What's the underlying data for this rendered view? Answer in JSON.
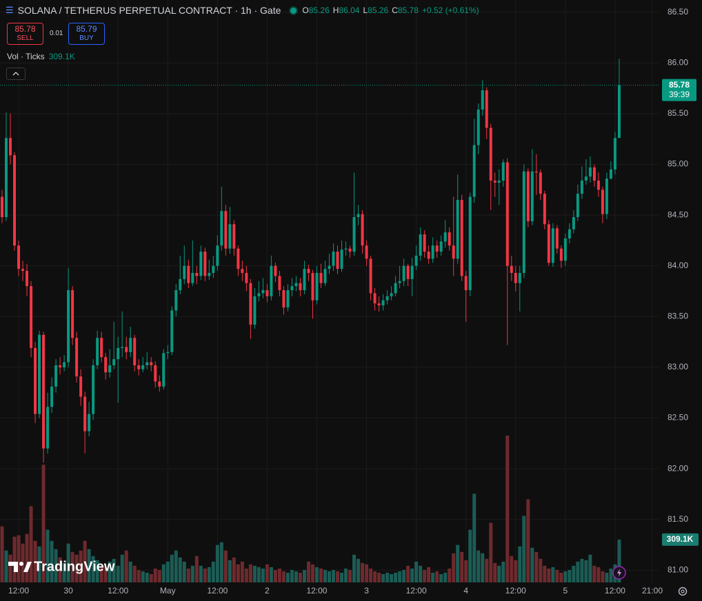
{
  "symbol_title": "SOLANA / TETHERUS PERPETUAL CONTRACT · 1h · Gate",
  "header": {
    "o_label": "O",
    "h_label": "H",
    "l_label": "L",
    "c_label": "C",
    "change": "+0.52 (+0.61%)"
  },
  "trade": {
    "sell_price": 85.78,
    "sell": "SELL",
    "spread": 0.01,
    "buy_price": 85.79,
    "buy": "BUY"
  },
  "countdown": "39:39",
  "brand": "TradingView",
  "chart_data": {
    "type": "candlestick",
    "categories": [
      null,
      null,
      null,
      null,
      "12:00",
      null,
      null,
      null,
      null,
      null,
      null,
      null,
      null,
      null,
      null,
      null,
      "30",
      null,
      null,
      null,
      null,
      null,
      null,
      null,
      null,
      null,
      null,
      null,
      "12:00",
      null,
      null,
      null,
      null,
      null,
      null,
      null,
      null,
      null,
      null,
      null,
      "May",
      null,
      null,
      null,
      null,
      null,
      null,
      null,
      null,
      null,
      null,
      null,
      "12:00",
      null,
      null,
      null,
      null,
      null,
      null,
      null,
      null,
      null,
      null,
      null,
      "2",
      null,
      null,
      null,
      null,
      null,
      null,
      null,
      null,
      null,
      null,
      null,
      "12:00",
      null,
      null,
      null,
      null,
      null,
      null,
      null,
      null,
      null,
      null,
      null,
      "3",
      null,
      null,
      null,
      null,
      null,
      null,
      null,
      null,
      null,
      null,
      null,
      "12:00",
      null,
      null,
      null,
      null,
      null,
      null,
      null,
      null,
      null,
      null,
      null,
      "4",
      null,
      null,
      null,
      null,
      null,
      null,
      null,
      null,
      null,
      null,
      null,
      "12:00",
      null,
      null,
      null,
      null,
      null,
      null,
      null,
      null,
      null,
      null,
      null,
      "5",
      null,
      null,
      null,
      null,
      null,
      null,
      null,
      null,
      null,
      null,
      null,
      "12:00",
      null,
      null,
      null,
      null,
      null,
      null,
      null,
      null,
      "21:00",
      null
    ],
    "open": [
      84.68,
      84.48,
      85.26,
      85.09,
      84.2,
      83.97,
      83.95,
      83.8,
      83.19,
      82.54,
      83.32,
      82.2,
      82.61,
      82.81,
      83.02,
      83.0,
      83.05,
      83.76,
      83.29,
      82.91,
      82.71,
      82.37,
      82.54,
      83.02,
      83.29,
      83.1,
      82.95,
      83.02,
      83.08,
      83.19,
      83.2,
      83.15,
      83.29,
      83.02,
      82.98,
      83.02,
      83.05,
      83.02,
      82.86,
      82.81,
      83.14,
      83.15,
      83.56,
      83.76,
      83.87,
      84.0,
      83.83,
      83.93,
      83.9,
      84.14,
      83.9,
      83.93,
      84.0,
      84.2,
      84.54,
      84.17,
      84.41,
      84.17,
      83.97,
      83.93,
      83.83,
      83.42,
      83.7,
      83.73,
      83.76,
      83.7,
      84.0,
      83.9,
      83.76,
      83.59,
      83.76,
      83.8,
      83.83,
      83.76,
      83.97,
      83.93,
      83.66,
      83.93,
      83.83,
      83.97,
      84.0,
      84.14,
      83.97,
      84.16,
      84.17,
      84.14,
      84.48,
      84.51,
      84.2,
      84.07,
      83.73,
      83.63,
      83.61,
      83.66,
      83.7,
      83.73,
      83.83,
      83.85,
      84.0,
      83.87,
      84.0,
      84.1,
      84.31,
      84.14,
      84.07,
      84.2,
      84.14,
      84.24,
      84.33,
      84.2,
      84.07,
      84.65,
      83.9,
      83.76,
      84.68,
      85.19,
      85.54,
      85.73,
      85.36,
      84.84,
      84.82,
      84.84,
      85.02,
      84.0,
      83.93,
      83.83,
      83.93,
      84.93,
      84.44,
      84.93,
      84.92,
      84.71,
      84.41,
      84.03,
      84.37,
      84.17,
      84.05,
      84.27,
      84.36,
      84.48,
      84.71,
      84.84,
      84.88,
      84.97,
      84.84,
      84.75,
      84.51,
      84.86,
      84.95,
      85.26,
      null,
      null,
      null,
      null,
      null,
      null,
      null,
      null,
      null
    ],
    "high": [
      84.75,
      85.51,
      85.5,
      85.12,
      84.25,
      84.05,
      84.02,
      83.85,
      83.25,
      83.36,
      83.35,
      82.75,
      82.9,
      83.08,
      83.1,
      83.12,
      83.98,
      83.8,
      83.35,
      82.98,
      82.76,
      82.66,
      83.08,
      83.36,
      83.35,
      83.14,
      83.18,
      83.45,
      83.3,
      83.55,
      83.3,
      83.4,
      83.32,
      83.08,
      83.1,
      83.15,
      83.1,
      83.06,
      82.92,
      83.18,
      83.22,
      83.6,
      83.82,
      84.1,
      84.2,
      84.06,
      84.25,
      84.0,
      84.2,
      84.18,
      84.06,
      84.1,
      84.3,
      84.78,
      84.6,
      84.58,
      84.45,
      84.2,
      84.05,
      84.0,
      83.87,
      83.78,
      83.85,
      83.88,
      83.82,
      84.1,
      84.03,
      83.95,
      83.8,
      83.82,
      83.88,
      83.9,
      83.88,
      84.05,
      84.01,
      83.96,
      84.0,
      84.02,
      84.05,
      84.12,
      84.22,
      84.2,
      84.25,
      84.24,
      84.2,
      84.92,
      84.6,
      84.55,
      84.25,
      84.1,
      83.78,
      83.7,
      83.72,
      83.76,
      83.8,
      83.9,
      84.0,
      84.07,
      84.02,
      84.08,
      84.2,
      84.38,
      84.35,
      84.2,
      84.28,
      84.25,
      84.3,
      84.45,
      84.38,
      84.68,
      84.9,
      84.7,
      83.95,
      84.72,
      85.45,
      85.6,
      85.83,
      85.76,
      85.4,
      84.92,
      84.95,
      85.05,
      85.06,
      84.1,
      84.0,
      84.0,
      85.0,
      84.96,
      85.15,
      85.1,
      84.95,
      84.74,
      84.45,
      84.42,
      84.4,
      84.2,
      84.32,
      84.42,
      84.55,
      84.8,
      84.98,
      85.05,
      85.08,
      85.0,
      84.92,
      84.78,
      84.92,
      85.03,
      85.32,
      86.04,
      null,
      null,
      null,
      null,
      null,
      null,
      null,
      null,
      null
    ],
    "low": [
      84.42,
      84.44,
      85.0,
      84.15,
      83.9,
      83.85,
      83.7,
      83.1,
      82.45,
      82.5,
      82.06,
      82.15,
      82.55,
      82.75,
      82.93,
      82.96,
      83.0,
      83.22,
      82.85,
      82.62,
      82.15,
      82.32,
      82.48,
      82.98,
      83.05,
      82.88,
      82.9,
      82.98,
      82.65,
      83.1,
      83.08,
      83.1,
      82.96,
      82.92,
      82.95,
      82.98,
      82.96,
      82.8,
      82.76,
      82.78,
      83.08,
      83.12,
      83.5,
      83.72,
      83.82,
      83.78,
      83.8,
      83.82,
      83.86,
      83.85,
      83.86,
      83.88,
      83.95,
      84.15,
      84.1,
      84.12,
      84.1,
      83.9,
      83.85,
      83.75,
      83.28,
      83.38,
      83.65,
      83.68,
      83.64,
      83.66,
      83.84,
      83.7,
      83.52,
      83.55,
      83.7,
      83.75,
      83.7,
      83.72,
      83.85,
      83.48,
      83.62,
      83.78,
      83.8,
      83.92,
      83.95,
      83.92,
      83.94,
      84.1,
      84.08,
      84.1,
      84.4,
      84.12,
      84.0,
      83.66,
      83.56,
      83.55,
      83.56,
      83.62,
      83.66,
      83.7,
      83.78,
      83.8,
      83.8,
      83.7,
      83.96,
      84.05,
      84.08,
      84.02,
      84.03,
      84.08,
      84.1,
      84.18,
      84.15,
      83.9,
      84.02,
      83.85,
      83.45,
      83.7,
      84.62,
      85.1,
      85.48,
      85.25,
      84.55,
      84.68,
      84.6,
      84.78,
      83.22,
      83.85,
      83.75,
      83.55,
      83.88,
      84.38,
      84.4,
      84.7,
      84.65,
      84.36,
      84.0,
      83.99,
      84.12,
      83.98,
      84.0,
      84.22,
      84.32,
      84.44,
      84.66,
      84.8,
      84.82,
      84.78,
      84.68,
      84.42,
      84.46,
      84.85,
      84.9,
      85.26,
      null,
      null,
      null,
      null,
      null,
      null,
      null,
      null,
      null
    ],
    "close": [
      84.48,
      85.26,
      85.09,
      84.2,
      83.97,
      83.95,
      83.8,
      83.19,
      82.54,
      83.32,
      82.2,
      82.61,
      82.81,
      83.02,
      83.0,
      83.05,
      83.76,
      83.29,
      82.91,
      82.71,
      82.37,
      82.54,
      83.02,
      83.29,
      83.1,
      82.95,
      83.02,
      83.08,
      83.19,
      83.2,
      83.15,
      83.29,
      83.02,
      82.98,
      83.02,
      83.05,
      83.02,
      82.86,
      82.81,
      83.14,
      83.15,
      83.56,
      83.76,
      83.87,
      84.0,
      83.83,
      83.93,
      83.9,
      84.14,
      83.9,
      83.93,
      84.0,
      84.2,
      84.54,
      84.17,
      84.41,
      84.17,
      83.97,
      83.93,
      83.83,
      83.42,
      83.7,
      83.73,
      83.76,
      83.7,
      84.0,
      83.9,
      83.76,
      83.59,
      83.76,
      83.8,
      83.83,
      83.76,
      83.97,
      83.93,
      83.66,
      83.93,
      83.83,
      83.97,
      84.0,
      84.14,
      83.97,
      84.16,
      84.17,
      84.14,
      84.48,
      84.51,
      84.2,
      84.07,
      83.73,
      83.63,
      83.61,
      83.66,
      83.7,
      83.73,
      83.83,
      83.85,
      84.0,
      83.87,
      84.0,
      84.1,
      84.31,
      84.14,
      84.07,
      84.2,
      84.14,
      84.24,
      84.33,
      84.2,
      84.07,
      84.65,
      83.9,
      83.76,
      84.68,
      85.19,
      85.54,
      85.73,
      85.36,
      84.84,
      84.82,
      84.84,
      85.02,
      84.0,
      83.93,
      83.83,
      83.93,
      84.93,
      84.44,
      84.93,
      84.92,
      84.71,
      84.41,
      84.03,
      84.37,
      84.17,
      84.05,
      84.27,
      84.36,
      84.48,
      84.71,
      84.84,
      84.88,
      84.97,
      84.84,
      84.75,
      84.51,
      84.86,
      84.95,
      85.26,
      85.78,
      null,
      null,
      null,
      null,
      null,
      null,
      null,
      null,
      null
    ],
    "up_color": "#089981",
    "down_color": "#f23645",
    "last_price_color": "#089981",
    "ylim": [
      80.88,
      86.62
    ],
    "yticks": [
      {
        "value": 81,
        "label": "81.00"
      },
      {
        "value": 81.5,
        "label": "81.50"
      },
      {
        "value": 82,
        "label": "82.00"
      },
      {
        "value": 82.5,
        "label": "82.50"
      },
      {
        "value": 83,
        "label": "83.00"
      },
      {
        "value": 83.5,
        "label": "83.50"
      },
      {
        "value": 84,
        "label": "84.00"
      },
      {
        "value": 84.5,
        "label": "84.50"
      },
      {
        "value": 85,
        "label": "85.00"
      },
      {
        "value": 85.5,
        "label": "85.50"
      },
      {
        "value": 86,
        "label": "86.00"
      },
      {
        "value": 86.5,
        "label": "86.50"
      }
    ],
    "grid": true,
    "volume": {
      "name": "Vol · Ticks",
      "up_color": "#1c5c55",
      "down_color": "#6e2a2e",
      "values": [
        405000,
        230000,
        200000,
        330000,
        340000,
        280000,
        350000,
        550000,
        300000,
        260000,
        850000,
        380000,
        300000,
        240000,
        180000,
        140000,
        280000,
        220000,
        200000,
        230000,
        300000,
        240000,
        190000,
        160000,
        120000,
        110000,
        150000,
        170000,
        120000,
        200000,
        230000,
        150000,
        120000,
        90000,
        80000,
        70000,
        60000,
        100000,
        90000,
        130000,
        150000,
        200000,
        230000,
        180000,
        150000,
        100000,
        120000,
        190000,
        120000,
        100000,
        110000,
        150000,
        270000,
        290000,
        230000,
        160000,
        180000,
        130000,
        150000,
        100000,
        130000,
        120000,
        110000,
        100000,
        130000,
        110000,
        90000,
        100000,
        80000,
        70000,
        90000,
        80000,
        70000,
        90000,
        150000,
        130000,
        110000,
        100000,
        90000,
        80000,
        90000,
        80000,
        70000,
        100000,
        90000,
        200000,
        170000,
        140000,
        130000,
        100000,
        80000,
        70000,
        60000,
        70000,
        60000,
        70000,
        80000,
        90000,
        120000,
        100000,
        150000,
        120000,
        90000,
        110000,
        70000,
        80000,
        60000,
        70000,
        100000,
        210000,
        270000,
        220000,
        160000,
        380000,
        640000,
        230000,
        210000,
        170000,
        430000,
        140000,
        120000,
        150000,
        1060000,
        190000,
        160000,
        260000,
        480000,
        600000,
        250000,
        220000,
        170000,
        120000,
        100000,
        110000,
        90000,
        70000,
        80000,
        90000,
        120000,
        150000,
        170000,
        160000,
        200000,
        120000,
        110000,
        80000,
        70000,
        100000,
        130000,
        309100,
        null,
        null,
        null,
        null,
        null,
        null,
        null,
        null,
        null
      ],
      "value_labels": [
        null,
        null,
        null,
        null,
        null,
        null,
        null,
        null,
        null,
        null,
        null,
        null,
        null,
        null,
        null,
        null,
        null,
        null,
        null,
        null,
        null,
        null,
        null,
        null,
        null,
        null,
        null,
        null,
        null,
        null,
        null,
        null,
        null,
        null,
        null,
        null,
        null,
        null,
        null,
        null,
        null,
        null,
        null,
        null,
        null,
        null,
        null,
        null,
        null,
        null,
        null,
        null,
        null,
        null,
        null,
        null,
        null,
        null,
        null,
        null,
        null,
        null,
        null,
        null,
        null,
        null,
        null,
        null,
        null,
        null,
        null,
        null,
        null,
        null,
        null,
        null,
        null,
        null,
        null,
        null,
        null,
        null,
        null,
        null,
        null,
        null,
        null,
        null,
        null,
        null,
        null,
        null,
        null,
        null,
        null,
        null,
        null,
        null,
        null,
        null,
        null,
        null,
        null,
        null,
        null,
        null,
        null,
        null,
        null,
        null,
        null,
        null,
        null,
        null,
        null,
        null,
        null,
        null,
        null,
        null,
        null,
        null,
        null,
        null,
        null,
        null,
        null,
        null,
        null,
        null,
        null,
        null,
        null,
        null,
        null,
        null,
        null,
        null,
        null,
        null,
        null,
        null,
        null,
        null,
        null,
        null,
        null,
        null,
        null,
        "309.1K",
        null,
        null,
        null,
        null,
        null,
        null,
        null,
        null,
        null
      ]
    }
  }
}
